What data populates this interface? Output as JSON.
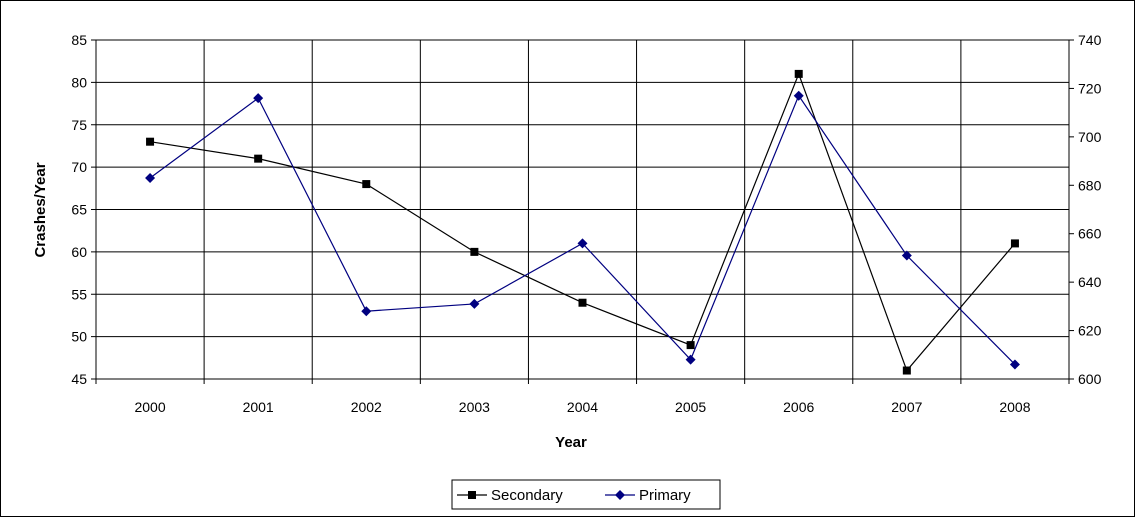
{
  "chart_data": {
    "type": "line",
    "title": "",
    "xlabel": "Year",
    "ylabel": "Crashes/Year",
    "y2label": "",
    "categories": [
      "2000",
      "2001",
      "2002",
      "2003",
      "2004",
      "2005",
      "2006",
      "2007",
      "2008"
    ],
    "ylim": [
      45,
      85
    ],
    "yticks": [
      45,
      50,
      55,
      60,
      65,
      70,
      75,
      80,
      85
    ],
    "y2lim": [
      600,
      740
    ],
    "y2ticks": [
      600,
      620,
      640,
      660,
      680,
      700,
      720,
      740
    ],
    "grid": true,
    "legend_position": "bottom",
    "series": [
      {
        "name": "Secondary",
        "axis": "left",
        "marker": "square",
        "color": "#000000",
        "values": [
          73,
          71,
          68,
          60,
          54,
          49,
          81,
          46,
          61
        ]
      },
      {
        "name": "Primary",
        "axis": "right",
        "marker": "diamond",
        "color": "#000080",
        "values": [
          683,
          716,
          628,
          631,
          656,
          608,
          717,
          651,
          606
        ]
      }
    ]
  }
}
